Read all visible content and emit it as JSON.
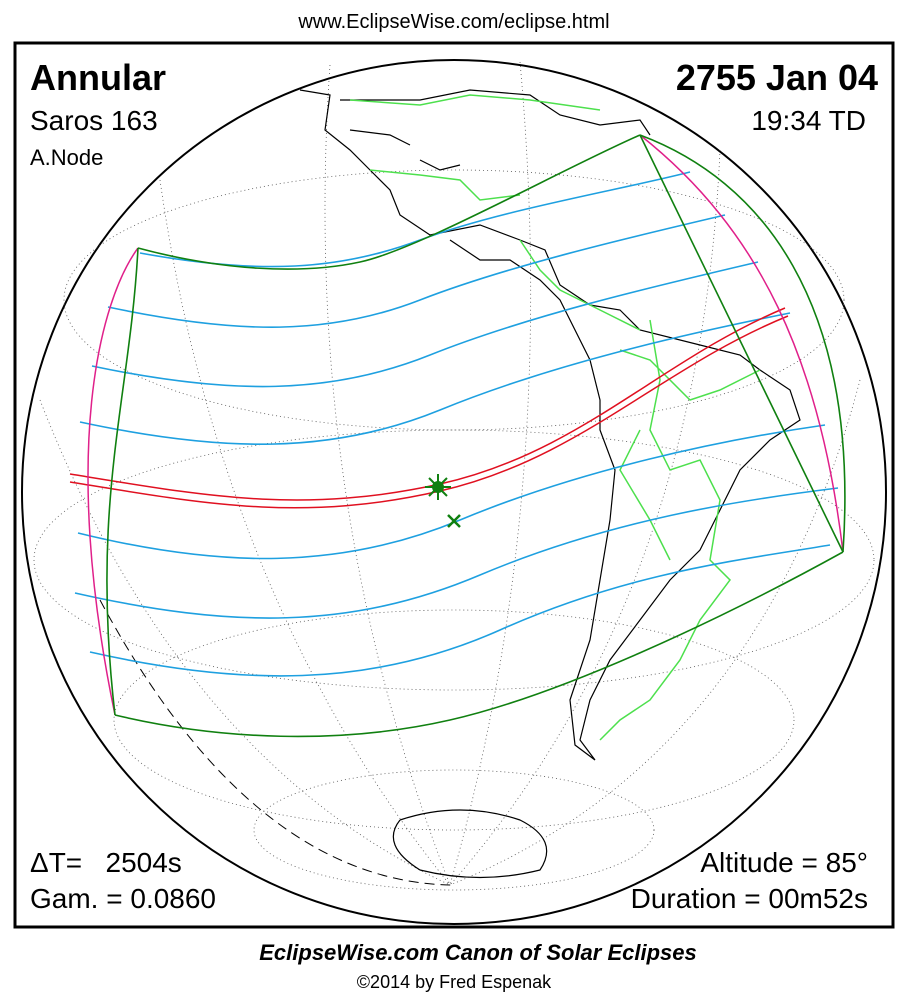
{
  "header": {
    "url": "www.EclipseWise.com/eclipse.html"
  },
  "eclipse": {
    "type": "Annular",
    "saros": "Saros 163",
    "node": "A.Node",
    "date": "2755 Jan 04",
    "time": "19:34 TD",
    "delta_t": "ΔT=   2504s",
    "gamma": "Gam. = 0.0860",
    "altitude": "Altitude = 85°",
    "duration": "Duration = 00m52s"
  },
  "footer": {
    "title": "EclipseWise.com Canon of Solar Eclipses",
    "credit": "©2014 by Fred Espenak"
  }
}
